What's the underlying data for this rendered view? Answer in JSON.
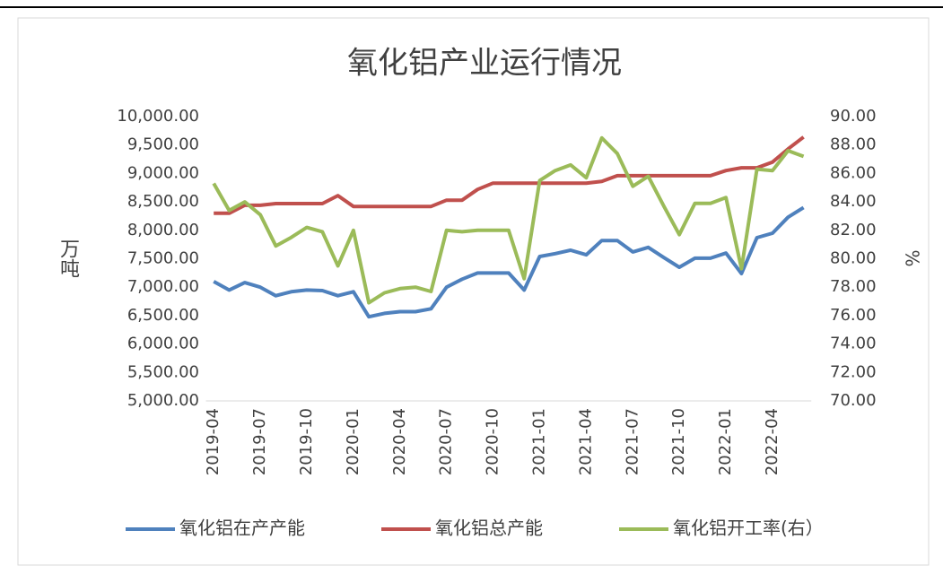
{
  "chart_data": {
    "type": "line",
    "title": "氧化铝产业运行情况",
    "y_label": "万吨",
    "y2_label": "%",
    "categories": [
      "2019-04",
      null,
      null,
      "2019-07",
      null,
      null,
      "2019-10",
      null,
      null,
      "2020-01",
      null,
      null,
      "2020-04",
      null,
      null,
      "2020-07",
      null,
      null,
      "2020-10",
      null,
      null,
      "2021-01",
      null,
      null,
      "2021-04",
      null,
      null,
      "2021-07",
      null,
      null,
      "2021-10",
      null,
      null,
      "2022-01",
      null,
      null,
      "2022-04",
      null,
      null
    ],
    "series": [
      {
        "name": "氧化铝在产产能",
        "color": "#4f81bd",
        "axis": "y",
        "values": [
          7100,
          6950,
          7080,
          7000,
          6850,
          6920,
          6950,
          6940,
          6850,
          6920,
          6480,
          6540,
          6570,
          6570,
          6620,
          7000,
          7140,
          7250,
          7250,
          7250,
          6950,
          7540,
          7590,
          7650,
          7570,
          7820,
          7820,
          7620,
          7700,
          7520,
          7350,
          7510,
          7510,
          7600,
          7240,
          7870,
          7950,
          8230,
          8400
        ]
      },
      {
        "name": "氧化铝总产能",
        "color": "#c0504d",
        "axis": "y",
        "values": [
          8300,
          8300,
          8440,
          8440,
          8470,
          8470,
          8470,
          8470,
          8610,
          8420,
          8420,
          8420,
          8420,
          8420,
          8420,
          8530,
          8530,
          8720,
          8830,
          8830,
          8830,
          8830,
          8830,
          8830,
          8830,
          8860,
          8960,
          8960,
          8960,
          8960,
          8960,
          8960,
          8960,
          9050,
          9100,
          9100,
          9200,
          9430,
          9640
        ]
      },
      {
        "name": "氧化铝开工率(右）",
        "color": "#9bbb59",
        "axis": "y2",
        "values": [
          85.3,
          83.4,
          84.0,
          83.1,
          80.9,
          81.5,
          82.2,
          81.9,
          79.5,
          82.0,
          76.9,
          77.6,
          77.9,
          78.0,
          77.7,
          82.0,
          81.9,
          82.0,
          82.0,
          82.0,
          78.6,
          85.5,
          86.2,
          86.6,
          85.7,
          88.5,
          87.4,
          85.1,
          85.8,
          83.7,
          81.7,
          83.9,
          83.9,
          84.3,
          79.3,
          86.3,
          86.2,
          87.6,
          87.2
        ]
      }
    ],
    "ylim": [
      5000,
      10000
    ],
    "yticks": [
      {
        "value": 5000,
        "label": "5,000.00"
      },
      {
        "value": 5500,
        "label": "5,500.00"
      },
      {
        "value": 6000,
        "label": "6,000.00"
      },
      {
        "value": 6500,
        "label": "6,500.00"
      },
      {
        "value": 7000,
        "label": "7,000.00"
      },
      {
        "value": 7500,
        "label": "7,500.00"
      },
      {
        "value": 8000,
        "label": "8,000.00"
      },
      {
        "value": 8500,
        "label": "8,500.00"
      },
      {
        "value": 9000,
        "label": "9,000.00"
      },
      {
        "value": 9500,
        "label": "9,500.00"
      },
      {
        "value": 10000,
        "label": "10,000.00"
      }
    ],
    "y2lim": [
      70,
      90
    ],
    "y2ticks": [
      {
        "value": 70,
        "label": "70.00"
      },
      {
        "value": 72,
        "label": "72.00"
      },
      {
        "value": 74,
        "label": "74.00"
      },
      {
        "value": 76,
        "label": "76.00"
      },
      {
        "value": 78,
        "label": "78.00"
      },
      {
        "value": 80,
        "label": "80.00"
      },
      {
        "value": 82,
        "label": "82.00"
      },
      {
        "value": 84,
        "label": "84.00"
      },
      {
        "value": 86,
        "label": "86.00"
      },
      {
        "value": 88,
        "label": "88.00"
      },
      {
        "value": 90,
        "label": "90.00"
      }
    ],
    "grid": false,
    "legend": "bottom"
  }
}
